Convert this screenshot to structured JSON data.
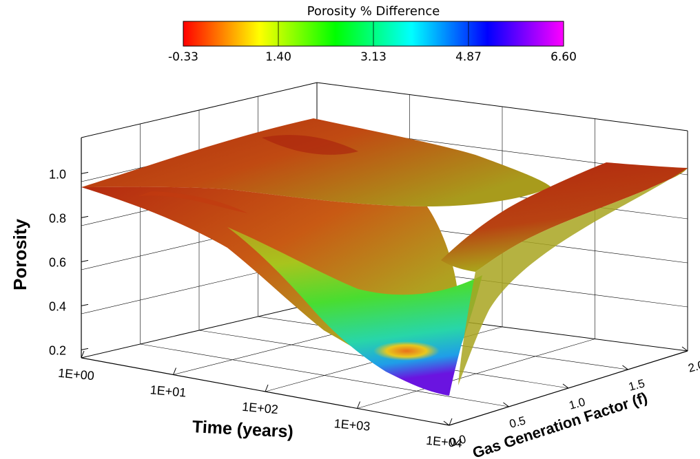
{
  "chart_data": {
    "type": "surface3d",
    "title": "",
    "colorbar": {
      "title": "Porosity  %  Difference",
      "ticks": [
        "-0.33",
        "1.40",
        "3.13",
        "4.87",
        "6.60"
      ],
      "range": [
        -0.33,
        6.6
      ],
      "colors": [
        "#ff0000",
        "#ffff00",
        "#00ff00",
        "#00ffff",
        "#0000ff",
        "#ff00ff"
      ]
    },
    "axes": {
      "x": {
        "label": "Time (years)",
        "scale": "log",
        "range": [
          "1E+00",
          "1E+04"
        ],
        "ticks": [
          "1E+00",
          "1E+01",
          "1E+02",
          "1E+03",
          "1E+04"
        ]
      },
      "y": {
        "label": "Gas Generation Factor (f)",
        "range": [
          0.0,
          2.0
        ],
        "ticks": [
          "0.0",
          "0.5",
          "1.0",
          "1.5",
          "2.0"
        ]
      },
      "z": {
        "label": "Porosity",
        "range": [
          0.2,
          1.0
        ],
        "ticks": [
          "0.2",
          "0.4",
          "0.6",
          "0.8",
          "1.0"
        ]
      }
    },
    "surface_points": [
      {
        "time": "1E+00",
        "f": 0.0,
        "porosity": 0.85
      },
      {
        "time": "1E+00",
        "f": 2.0,
        "porosity": 0.98
      },
      {
        "time": "1E+04",
        "f": 2.0,
        "porosity": 0.95
      },
      {
        "time": "1E+04",
        "f": 0.0,
        "porosity": 0.2
      },
      {
        "time": "1E+03",
        "f": 1.0,
        "porosity": 0.55
      },
      {
        "time": "1E+02",
        "f": 0.5,
        "porosity": 0.5
      },
      {
        "time": "1E+04",
        "f": 1.0,
        "porosity": 0.62
      }
    ],
    "grid": true,
    "legend": "top-center"
  }
}
